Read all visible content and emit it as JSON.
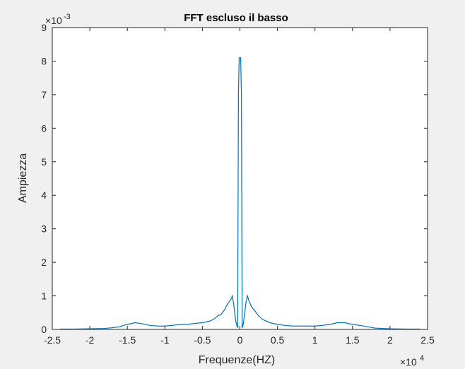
{
  "figure": {
    "background_color": "#f0f0f0",
    "axes_background_color": "#ffffff",
    "axes_color": "#262626",
    "line_color": "#0072bd"
  },
  "chart_data": {
    "type": "line",
    "title": "FFT escluso il basso",
    "xlabel": "Frequenze(HZ)",
    "ylabel": "Ampiezza",
    "xlim": [
      -2.5,
      2.5
    ],
    "ylim": [
      0,
      9
    ],
    "x_exponent_label": "×10",
    "x_exponent": "4",
    "y_exponent_label": "×10",
    "y_exponent": "-3",
    "x_ticks": [
      -2.5,
      -2,
      -1.5,
      -1,
      -0.5,
      0,
      0.5,
      1,
      1.5,
      2,
      2.5
    ],
    "x_tick_labels": [
      "-2.5",
      "-2",
      "-1.5",
      "-1",
      "-0.5",
      "0",
      "0.5",
      "1",
      "1.5",
      "2",
      "2.5"
    ],
    "y_ticks": [
      0,
      1,
      2,
      3,
      4,
      5,
      6,
      7,
      8,
      9
    ],
    "y_tick_labels": [
      "0",
      "1",
      "2",
      "3",
      "4",
      "5",
      "6",
      "7",
      "8",
      "9"
    ],
    "grid": false,
    "legend": "none",
    "series": [
      {
        "x": [
          -2.4,
          -2.2,
          -2.0,
          -1.8,
          -1.7,
          -1.6,
          -1.55,
          -1.5,
          -1.4,
          -1.3,
          -1.2,
          -1.1,
          -1.0,
          -0.9,
          -0.8,
          -0.7,
          -0.6,
          -0.5,
          -0.4,
          -0.35,
          -0.3,
          -0.25,
          -0.2,
          -0.18,
          -0.15,
          -0.12,
          -0.1,
          -0.08,
          -0.06,
          -0.04,
          -0.03,
          -0.02,
          -0.01,
          0.0,
          0.01,
          0.02,
          0.03,
          0.04,
          0.06,
          0.08,
          0.1,
          0.12,
          0.15,
          0.18,
          0.2,
          0.25,
          0.3,
          0.35,
          0.4,
          0.5,
          0.6,
          0.7,
          0.8,
          0.9,
          1.0,
          1.1,
          1.2,
          1.3,
          1.4,
          1.5,
          1.6,
          1.7,
          1.8,
          2.0,
          2.2,
          2.4
        ],
        "y": [
          0.01,
          0.01,
          0.02,
          0.03,
          0.05,
          0.08,
          0.12,
          0.15,
          0.2,
          0.17,
          0.12,
          0.1,
          0.1,
          0.12,
          0.15,
          0.15,
          0.18,
          0.2,
          0.25,
          0.3,
          0.4,
          0.45,
          0.6,
          0.7,
          0.8,
          0.9,
          1.0,
          0.7,
          0.3,
          0.1,
          0.05,
          7.0,
          8.1,
          8.1,
          8.1,
          7.0,
          0.05,
          0.1,
          0.4,
          0.8,
          1.0,
          0.85,
          0.7,
          0.6,
          0.55,
          0.4,
          0.3,
          0.25,
          0.2,
          0.15,
          0.12,
          0.1,
          0.1,
          0.1,
          0.1,
          0.12,
          0.15,
          0.2,
          0.2,
          0.15,
          0.12,
          0.08,
          0.04,
          0.02,
          0.01,
          0.01
        ]
      }
    ]
  }
}
